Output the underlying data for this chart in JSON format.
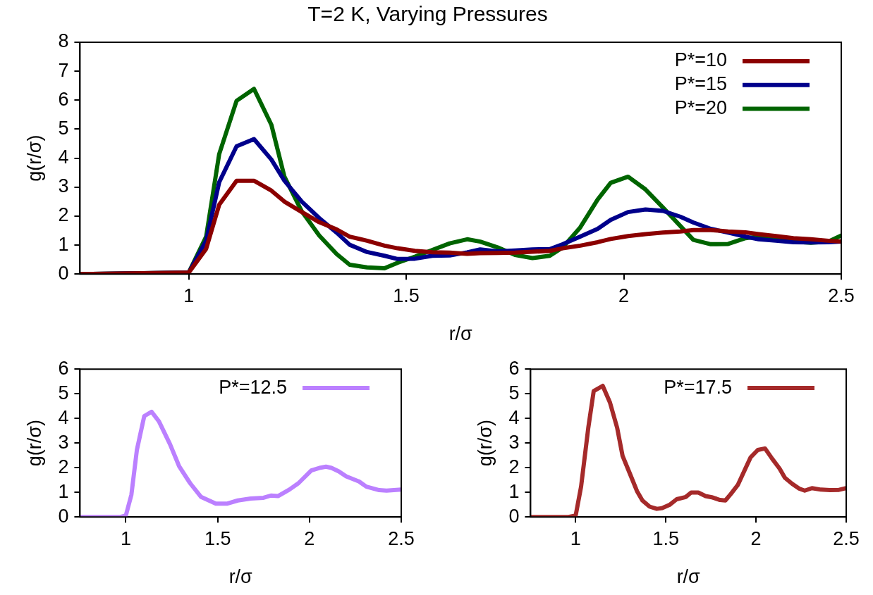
{
  "chart_data": [
    {
      "type": "line",
      "title": "T=2 K, Varying Pressures",
      "xlabel": "r/σ",
      "ylabel": "g(r/σ)",
      "xlim": [
        0.75,
        2.5
      ],
      "xticks": [
        1,
        1.5,
        2,
        2.5
      ],
      "ylim": [
        0,
        8
      ],
      "yticks": [
        0,
        1,
        2,
        3,
        4,
        5,
        6,
        7,
        8
      ],
      "grid": false,
      "legend": "top right",
      "marker": "none",
      "line_style": "solid",
      "x": [
        0.75,
        1.0,
        1.04,
        1.07,
        1.11,
        1.15,
        1.19,
        1.22,
        1.26,
        1.3,
        1.34,
        1.37,
        1.41,
        1.45,
        1.48,
        1.52,
        1.56,
        1.6,
        1.64,
        1.67,
        1.71,
        1.75,
        1.79,
        1.83,
        1.86,
        1.9,
        1.94,
        1.97,
        2.01,
        2.05,
        2.09,
        2.13,
        2.16,
        2.2,
        2.24,
        2.28,
        2.31,
        2.35,
        2.39,
        2.43,
        2.47,
        2.5
      ],
      "series": [
        {
          "name": "P*=10",
          "color": "#8b0000",
          "values": [
            0,
            0.05,
            0.87,
            2.39,
            3.22,
            3.22,
            2.88,
            2.5,
            2.14,
            1.79,
            1.54,
            1.29,
            1.15,
            0.98,
            0.89,
            0.8,
            0.75,
            0.74,
            0.7,
            0.72,
            0.73,
            0.74,
            0.77,
            0.8,
            0.89,
            0.98,
            1.1,
            1.21,
            1.31,
            1.38,
            1.43,
            1.47,
            1.52,
            1.52,
            1.47,
            1.44,
            1.38,
            1.31,
            1.24,
            1.2,
            1.15,
            1.12
          ]
        },
        {
          "name": "P*=15",
          "color": "#00008b",
          "values": [
            0,
            0.05,
            1.15,
            3.17,
            4.41,
            4.66,
            3.95,
            3.22,
            2.5,
            1.93,
            1.43,
            1.01,
            0.76,
            0.63,
            0.52,
            0.53,
            0.63,
            0.64,
            0.75,
            0.85,
            0.78,
            0.81,
            0.85,
            0.86,
            1.03,
            1.29,
            1.56,
            1.87,
            2.14,
            2.23,
            2.18,
            1.98,
            1.78,
            1.56,
            1.43,
            1.29,
            1.2,
            1.15,
            1.1,
            1.09,
            1.1,
            1.12
          ]
        },
        {
          "name": "P*=20",
          "color": "#006400",
          "values": [
            0,
            0.05,
            1.29,
            4.14,
            5.98,
            6.39,
            5.15,
            3.36,
            2.16,
            1.33,
            0.69,
            0.32,
            0.23,
            0.2,
            0.39,
            0.6,
            0.83,
            1.06,
            1.2,
            1.12,
            0.92,
            0.66,
            0.55,
            0.63,
            0.92,
            1.61,
            2.57,
            3.15,
            3.36,
            2.92,
            2.3,
            1.66,
            1.18,
            1.03,
            1.04,
            1.24,
            1.29,
            1.21,
            1.12,
            1.08,
            1.12,
            1.33
          ]
        }
      ]
    },
    {
      "type": "line",
      "xlabel": "r/σ",
      "ylabel": "g(r/σ)",
      "xlim": [
        0.75,
        2.5
      ],
      "xticks": [
        1,
        1.5,
        2,
        2.5
      ],
      "ylim": [
        0,
        6
      ],
      "yticks": [
        0,
        1,
        2,
        3,
        4,
        5,
        6
      ],
      "grid": false,
      "legend": "top right",
      "marker": "none",
      "line_style": "solid",
      "x": [
        0.75,
        0.97,
        1.0,
        1.03,
        1.06,
        1.1,
        1.14,
        1.18,
        1.24,
        1.29,
        1.35,
        1.41,
        1.49,
        1.55,
        1.61,
        1.68,
        1.75,
        1.79,
        1.83,
        1.89,
        1.94,
        2.01,
        2.06,
        2.09,
        2.12,
        2.16,
        2.2,
        2.27,
        2.31,
        2.38,
        2.42,
        2.5
      ],
      "series": [
        {
          "name": "P*=12.5",
          "color": "#bb80ff",
          "values": [
            0,
            0,
            0.06,
            0.9,
            2.72,
            4.09,
            4.27,
            3.88,
            2.96,
            2.06,
            1.37,
            0.81,
            0.54,
            0.54,
            0.67,
            0.75,
            0.78,
            0.87,
            0.85,
            1.11,
            1.37,
            1.89,
            2.0,
            2.04,
            1.99,
            1.85,
            1.65,
            1.44,
            1.23,
            1.09,
            1.07,
            1.11
          ]
        }
      ]
    },
    {
      "type": "line",
      "xlabel": "r/σ",
      "ylabel": "g(r/σ)",
      "xlim": [
        0.75,
        2.5
      ],
      "xticks": [
        1,
        1.5,
        2,
        2.5
      ],
      "ylim": [
        0,
        6
      ],
      "yticks": [
        0,
        1,
        2,
        3,
        4,
        5,
        6
      ],
      "grid": false,
      "legend": "top right",
      "marker": "none",
      "line_style": "solid",
      "x": [
        0.75,
        0.96,
        1.0,
        1.03,
        1.07,
        1.1,
        1.15,
        1.19,
        1.23,
        1.26,
        1.3,
        1.34,
        1.37,
        1.41,
        1.45,
        1.48,
        1.52,
        1.56,
        1.61,
        1.64,
        1.68,
        1.72,
        1.76,
        1.8,
        1.83,
        1.86,
        1.9,
        1.94,
        1.97,
        2.01,
        2.05,
        2.09,
        2.13,
        2.16,
        2.2,
        2.24,
        2.27,
        2.31,
        2.36,
        2.41,
        2.46,
        2.5
      ],
      "series": [
        {
          "name": "P*=17.5",
          "color": "#a52a2a",
          "values": [
            0,
            0,
            0.06,
            1.23,
            3.62,
            5.11,
            5.32,
            4.65,
            3.62,
            2.48,
            1.77,
            1.05,
            0.67,
            0.42,
            0.33,
            0.36,
            0.49,
            0.72,
            0.81,
            0.99,
            0.99,
            0.85,
            0.79,
            0.69,
            0.67,
            0.93,
            1.31,
            1.95,
            2.42,
            2.72,
            2.78,
            2.36,
            1.97,
            1.59,
            1.35,
            1.15,
            1.07,
            1.17,
            1.11,
            1.09,
            1.1,
            1.17
          ]
        }
      ]
    }
  ]
}
